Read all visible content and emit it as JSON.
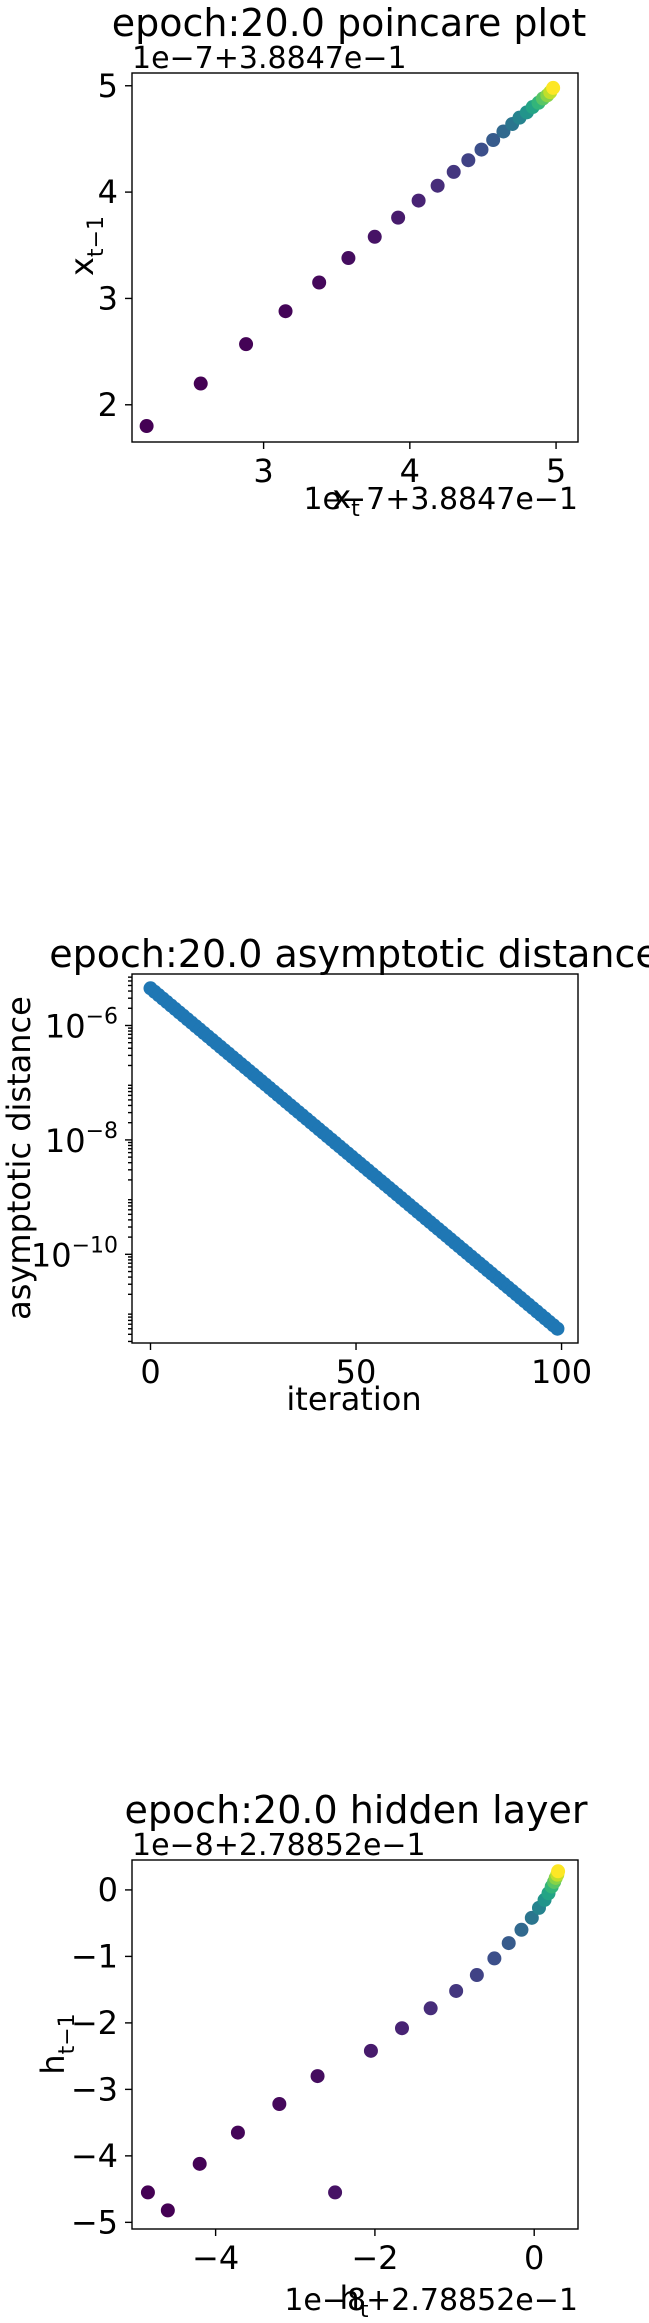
{
  "chart_data": [
    {
      "type": "scatter",
      "title": "epoch:20.0 poincare plot",
      "xlabel": "x_t",
      "ylabel": "x_{t-1}",
      "x_offset_text": "1e−7+3.8847e−1",
      "y_offset_text": "1e−7+3.8847e−1",
      "x_ticks": [
        3,
        4,
        5
      ],
      "y_ticks": [
        2,
        3,
        4,
        5
      ],
      "xlim": [
        2.1,
        5.15
      ],
      "ylim": [
        1.65,
        5.12
      ],
      "color_scale": "viridis",
      "points": {
        "x": [
          2.2,
          2.57,
          2.88,
          3.15,
          3.38,
          3.58,
          3.76,
          3.92,
          4.06,
          4.19,
          4.3,
          4.4,
          4.49,
          4.57,
          4.64,
          4.7,
          4.75,
          4.8,
          4.84,
          4.88,
          4.91,
          4.94,
          4.96,
          4.98
        ],
        "y": [
          1.8,
          2.2,
          2.57,
          2.88,
          3.15,
          3.38,
          3.58,
          3.76,
          3.92,
          4.06,
          4.19,
          4.3,
          4.4,
          4.49,
          4.57,
          4.64,
          4.7,
          4.75,
          4.8,
          4.84,
          4.88,
          4.91,
          4.94,
          4.98
        ]
      }
    },
    {
      "type": "scatter",
      "title": "epoch:20.0 asymptotic distance",
      "xlabel": "iteration",
      "ylabel": "asymptotic distance",
      "x_ticks": [
        0,
        50,
        100
      ],
      "y_ticks": [
        -6,
        -8,
        -10
      ],
      "y_tick_base": "10",
      "y_scale": "log",
      "xlim": [
        -4.5,
        104
      ],
      "ylim_log10": [
        -11.55,
        -5.1
      ],
      "color": "#1f77b4",
      "series": {
        "x_start": 0,
        "x_end": 99,
        "count": 100,
        "log10_y_start": -5.35,
        "log10_y_end": -11.3
      }
    },
    {
      "type": "scatter",
      "title": "epoch:20.0 hidden layer",
      "xlabel": "h_t",
      "ylabel": "h_{t-1}",
      "x_offset_text": "1e−8+2.78852e−1",
      "y_offset_text": "1e−8+2.78852e−1",
      "x_ticks": [
        -4,
        -2,
        0
      ],
      "y_ticks": [
        0,
        -1,
        -2,
        -3,
        -4,
        -5
      ],
      "xlim": [
        -5.05,
        0.55
      ],
      "ylim": [
        -5.1,
        0.45
      ],
      "color_scale": "viridis",
      "points": {
        "x": [
          -4.85,
          -4.6,
          -4.2,
          -3.72,
          -3.2,
          -2.72,
          -2.5,
          -2.05,
          -1.66,
          -1.3,
          -0.98,
          -0.72,
          -0.5,
          -0.32,
          -0.16,
          -0.03,
          0.06,
          0.13,
          0.18,
          0.22,
          0.25,
          0.27,
          0.29,
          0.3
        ],
        "y": [
          -4.55,
          -4.82,
          -4.12,
          -3.65,
          -3.22,
          -2.8,
          -4.55,
          -2.42,
          -2.08,
          -1.78,
          -1.52,
          -1.28,
          -1.03,
          -0.8,
          -0.6,
          -0.42,
          -0.27,
          -0.15,
          -0.05,
          0.05,
          0.12,
          0.18,
          0.23,
          0.28
        ]
      }
    }
  ]
}
